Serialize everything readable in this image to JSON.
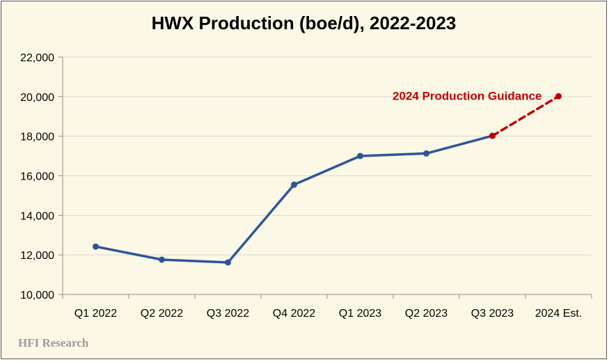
{
  "chart_data": {
    "type": "line",
    "title": "HWX Production (boe/d), 2022-2023",
    "categories": [
      "Q1 2022",
      "Q2 2022",
      "Q3 2022",
      "Q4 2022",
      "Q1 2023",
      "Q2 2023",
      "Q3 2023",
      "2024 Est."
    ],
    "series": [
      {
        "values": [
          12420,
          11760,
          11620,
          15550,
          17000,
          17130,
          18020,
          null
        ],
        "color": "#2f5597",
        "style": "solid"
      },
      {
        "values": [
          null,
          null,
          null,
          null,
          null,
          null,
          18020,
          20020
        ],
        "color": "#c00000",
        "style": "dashed"
      }
    ],
    "annotations": [
      {
        "text": "2024 Production Guidance",
        "color": "#c00000"
      }
    ],
    "yticks": [
      "10,000",
      "12,000",
      "14,000",
      "16,000",
      "18,000",
      "20,000",
      "22,000"
    ],
    "ylim": [
      10000,
      22000
    ],
    "xlabel": "",
    "ylabel": "",
    "grid": true
  },
  "watermark": "HFI Research"
}
